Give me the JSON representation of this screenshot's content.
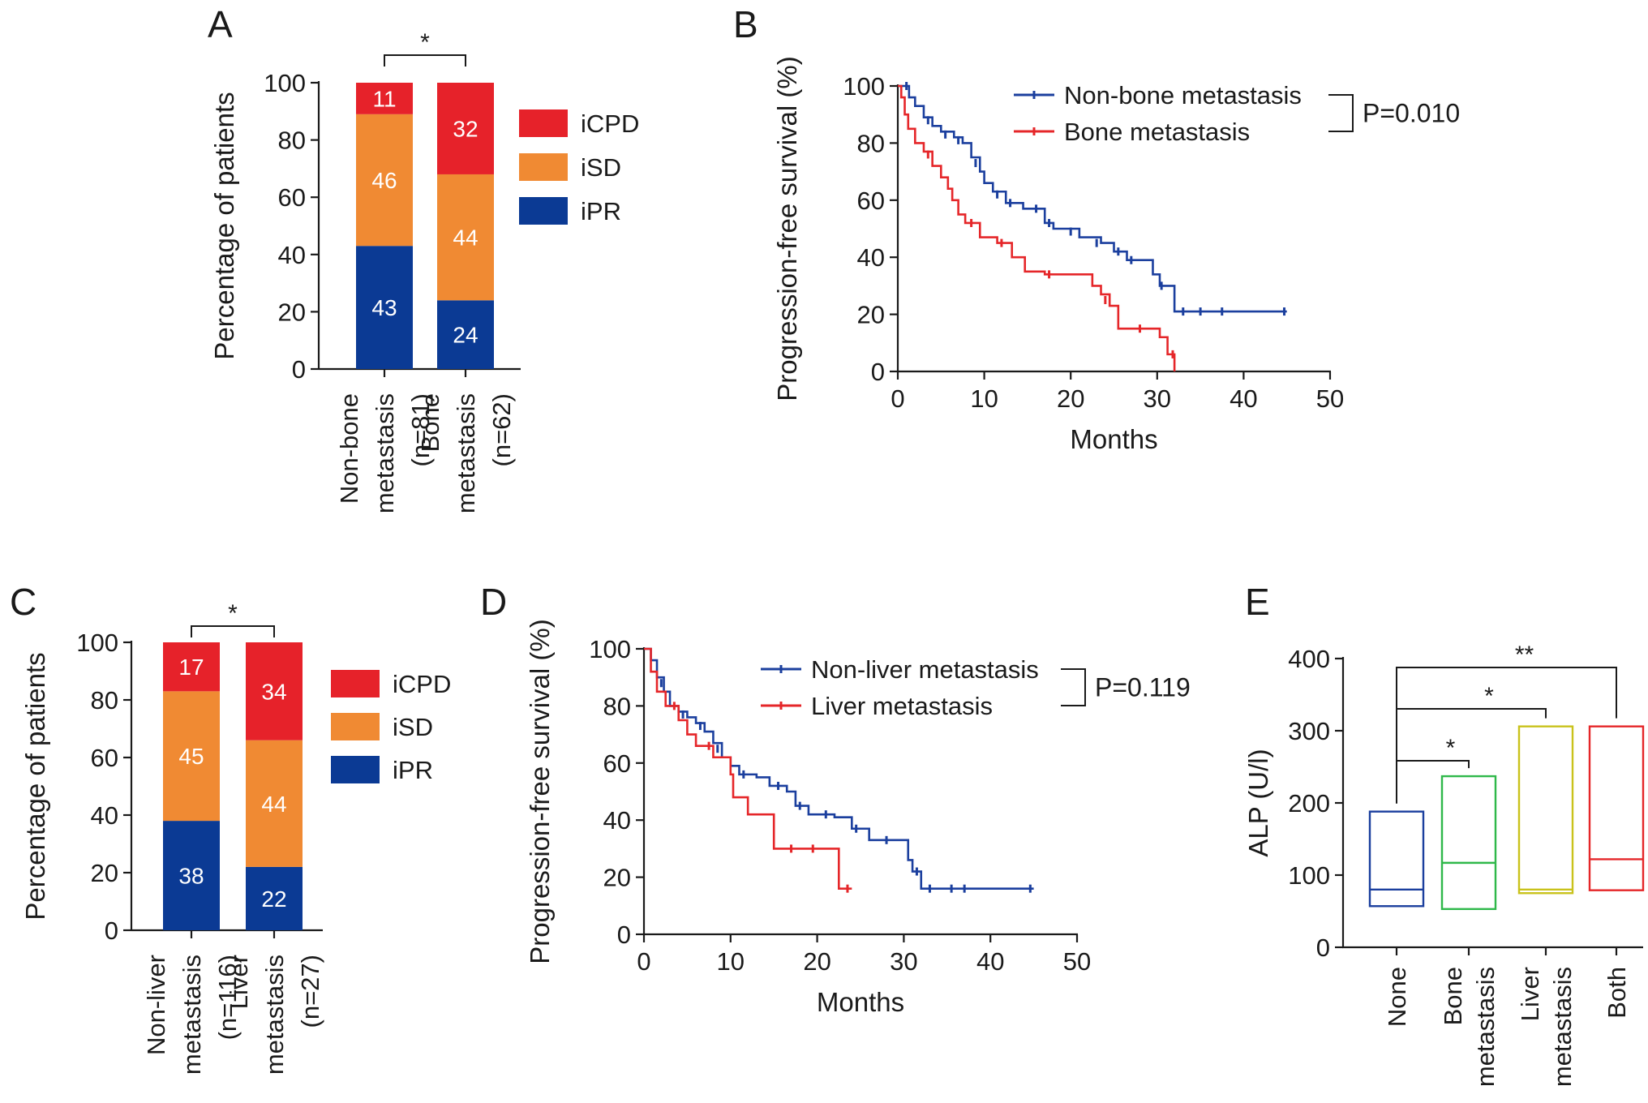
{
  "chart_data": [
    {
      "panel": "A",
      "type": "bar",
      "stacked": true,
      "ylabel": "Percentage of patients",
      "ylim": [
        0,
        100
      ],
      "yticks": [
        "0",
        "20",
        "40",
        "60",
        "80",
        "100"
      ],
      "categories": [
        {
          "lines": [
            "Non-bone",
            "metastasis",
            "(n=81)"
          ]
        },
        {
          "lines": [
            "Bone",
            "metastasis",
            "(n=62)"
          ]
        }
      ],
      "series": [
        {
          "name": "iPR",
          "color": "#0b3a94",
          "values": [
            43,
            24
          ]
        },
        {
          "name": "iSD",
          "color": "#f08a33",
          "values": [
            46,
            44
          ]
        },
        {
          "name": "iCPD",
          "color": "#e6222a",
          "values": [
            11,
            32
          ]
        }
      ],
      "legend_order": [
        "iCPD",
        "iSD",
        "iPR"
      ],
      "significance": "*"
    },
    {
      "panel": "B",
      "type": "line",
      "subtype": "kaplan-meier",
      "xlabel": "Months",
      "ylabel": "Progression-free survival (%)",
      "xlim": [
        0,
        50
      ],
      "ylim": [
        0,
        100
      ],
      "xticks": [
        "0",
        "10",
        "20",
        "30",
        "40",
        "50"
      ],
      "yticks": [
        "0",
        "20",
        "40",
        "60",
        "80",
        "100"
      ],
      "pvalue": "P=0.010",
      "series": [
        {
          "name": "Non-bone metastasis",
          "color": "#1b3f9e",
          "steps": [
            [
              0,
              100
            ],
            [
              1.3,
              96
            ],
            [
              2,
              93
            ],
            [
              3,
              89
            ],
            [
              4,
              86
            ],
            [
              5,
              84
            ],
            [
              6.5,
              82
            ],
            [
              7.5,
              80
            ],
            [
              8.5,
              75
            ],
            [
              9.5,
              70
            ],
            [
              10,
              66
            ],
            [
              11,
              63
            ],
            [
              12.5,
              59
            ],
            [
              14.5,
              57
            ],
            [
              17,
              52
            ],
            [
              18,
              50
            ],
            [
              21,
              47
            ],
            [
              23.5,
              45
            ],
            [
              25,
              42
            ],
            [
              26.5,
              39
            ],
            [
              29.5,
              34
            ],
            [
              30.3,
              30
            ],
            [
              32,
              21
            ],
            [
              45,
              21
            ]
          ],
          "censor": [
            [
              1,
              100
            ],
            [
              3.5,
              88
            ],
            [
              5.5,
              83
            ],
            [
              7,
              81
            ],
            [
              9,
              73
            ],
            [
              11.5,
              62
            ],
            [
              13,
              59
            ],
            [
              16,
              57
            ],
            [
              17.5,
              52
            ],
            [
              20,
              49
            ],
            [
              23,
              45
            ],
            [
              25.5,
              42
            ],
            [
              27,
              39
            ],
            [
              30.5,
              30
            ],
            [
              33,
              21
            ],
            [
              35,
              21
            ],
            [
              37.5,
              21
            ],
            [
              44.7,
              21
            ]
          ]
        },
        {
          "name": "Bone metastasis",
          "color": "#e52629",
          "steps": [
            [
              0,
              100
            ],
            [
              0.4,
              96
            ],
            [
              0.8,
              90
            ],
            [
              1.2,
              85
            ],
            [
              2,
              80
            ],
            [
              3,
              77
            ],
            [
              4,
              72
            ],
            [
              5,
              68
            ],
            [
              5.8,
              64
            ],
            [
              6.3,
              60
            ],
            [
              7,
              55
            ],
            [
              7.8,
              52
            ],
            [
              9.5,
              47
            ],
            [
              11.5,
              45
            ],
            [
              13.2,
              40
            ],
            [
              14.7,
              35
            ],
            [
              17,
              34
            ],
            [
              22.5,
              30
            ],
            [
              23.5,
              27
            ],
            [
              24.5,
              23
            ],
            [
              25.5,
              15
            ],
            [
              30.3,
              12
            ],
            [
              31.2,
              6
            ],
            [
              32,
              0
            ]
          ],
          "censor": [
            [
              3.5,
              76
            ],
            [
              8.5,
              52
            ],
            [
              12,
              45
            ],
            [
              17.5,
              34
            ],
            [
              24,
              25
            ],
            [
              28,
              15
            ],
            [
              31.8,
              6
            ]
          ]
        }
      ]
    },
    {
      "panel": "C",
      "type": "bar",
      "stacked": true,
      "ylabel": "Percentage of patients",
      "ylim": [
        0,
        100
      ],
      "yticks": [
        "0",
        "20",
        "40",
        "60",
        "80",
        "100"
      ],
      "categories": [
        {
          "lines": [
            "Non-liver",
            "metastasis",
            "(n=116)"
          ]
        },
        {
          "lines": [
            "Liver",
            "metastasis",
            "(n=27)"
          ]
        }
      ],
      "series": [
        {
          "name": "iPR",
          "color": "#0b3a94",
          "values": [
            38,
            22
          ]
        },
        {
          "name": "iSD",
          "color": "#f08a33",
          "values": [
            45,
            44
          ]
        },
        {
          "name": "iCPD",
          "color": "#e6222a",
          "values": [
            17,
            34
          ]
        }
      ],
      "legend_order": [
        "iCPD",
        "iSD",
        "iPR"
      ],
      "significance": "*"
    },
    {
      "panel": "D",
      "type": "line",
      "subtype": "kaplan-meier",
      "xlabel": "Months",
      "ylabel": "Progression-free survival (%)",
      "xlim": [
        0,
        50
      ],
      "ylim": [
        0,
        100
      ],
      "xticks": [
        "0",
        "10",
        "20",
        "30",
        "40",
        "50"
      ],
      "yticks": [
        "0",
        "20",
        "40",
        "60",
        "80",
        "100"
      ],
      "pvalue": "P=0.119",
      "series": [
        {
          "name": "Non-liver metastasis",
          "color": "#1b3f9e",
          "steps": [
            [
              0,
              100
            ],
            [
              0.8,
              96
            ],
            [
              1.5,
              90
            ],
            [
              2.3,
              85
            ],
            [
              3,
              80
            ],
            [
              4,
              78
            ],
            [
              5,
              76
            ],
            [
              6,
              74
            ],
            [
              7,
              71
            ],
            [
              8,
              67
            ],
            [
              9,
              62
            ],
            [
              10,
              59
            ],
            [
              11,
              56
            ],
            [
              13,
              55
            ],
            [
              14.5,
              52
            ],
            [
              16.5,
              50
            ],
            [
              17.5,
              45
            ],
            [
              19,
              42
            ],
            [
              22,
              41
            ],
            [
              24,
              37
            ],
            [
              26,
              33
            ],
            [
              30,
              33
            ],
            [
              30.5,
              26
            ],
            [
              31,
              22
            ],
            [
              32,
              16
            ],
            [
              45,
              16
            ]
          ],
          "censor": [
            [
              2,
              88
            ],
            [
              4.5,
              77
            ],
            [
              6.5,
              73
            ],
            [
              8.5,
              65
            ],
            [
              11.5,
              56
            ],
            [
              15.5,
              52
            ],
            [
              18,
              45
            ],
            [
              21,
              42
            ],
            [
              24.5,
              37
            ],
            [
              28,
              33
            ],
            [
              31.5,
              22
            ],
            [
              33,
              16
            ],
            [
              35.5,
              16
            ],
            [
              37,
              16
            ],
            [
              44.6,
              16
            ]
          ]
        },
        {
          "name": "Liver metastasis",
          "color": "#e52629",
          "steps": [
            [
              0,
              100
            ],
            [
              0.8,
              92
            ],
            [
              1.5,
              85
            ],
            [
              2.5,
              80
            ],
            [
              4,
              75
            ],
            [
              5,
              70
            ],
            [
              6,
              66
            ],
            [
              8,
              62
            ],
            [
              10,
              56
            ],
            [
              10.3,
              48
            ],
            [
              12,
              42
            ],
            [
              15,
              30
            ],
            [
              22,
              30
            ],
            [
              22.5,
              16
            ],
            [
              24,
              16
            ]
          ],
          "censor": [
            [
              3.5,
              80
            ],
            [
              7.5,
              66
            ],
            [
              17,
              30
            ],
            [
              19.5,
              30
            ],
            [
              23.5,
              16
            ]
          ]
        }
      ]
    },
    {
      "panel": "E",
      "type": "box",
      "ylabel": "ALP (U/l)",
      "ylim": [
        0,
        400
      ],
      "yticks": [
        "0",
        "100",
        "200",
        "300",
        "400"
      ],
      "categories": [
        {
          "lines": [
            "None"
          ]
        },
        {
          "lines": [
            "Bone",
            "metastasis"
          ]
        },
        {
          "lines": [
            "Liver",
            "metastasis"
          ]
        },
        {
          "lines": [
            "Both"
          ]
        }
      ],
      "boxes": [
        {
          "min": 57,
          "median": 80,
          "max": 188,
          "color": "#1b3f9e"
        },
        {
          "min": 53,
          "median": 117,
          "max": 237,
          "color": "#2fb84a"
        },
        {
          "min": 75,
          "median": 80,
          "max": 306,
          "color": "#c9c21b"
        },
        {
          "min": 79,
          "median": 122,
          "max": 306,
          "color": "#e52629"
        }
      ],
      "comparisons": [
        {
          "from": 0,
          "to": 1,
          "label": "*"
        },
        {
          "from": 0,
          "to": 2,
          "label": "*"
        },
        {
          "from": 0,
          "to": 3,
          "label": "**"
        }
      ]
    }
  ]
}
